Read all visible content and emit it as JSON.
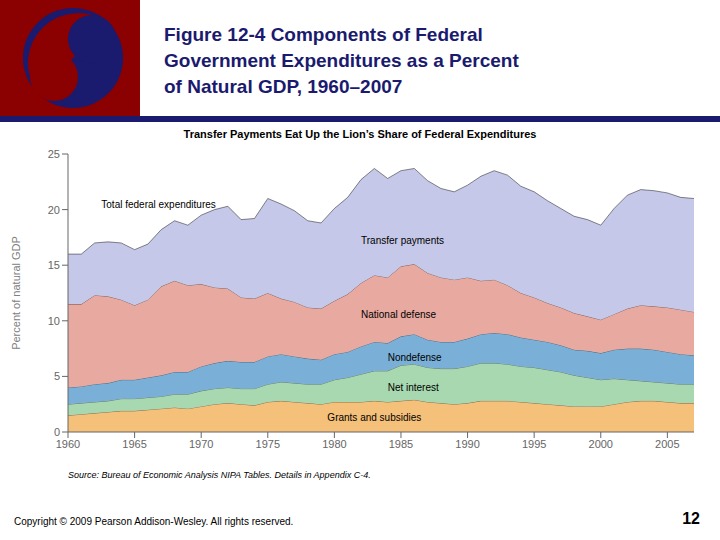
{
  "chart_data": {
    "type": "area",
    "stacked": true,
    "title": [
      "Figure 12-4  Components of Federal",
      "Government Expenditures as a Percent",
      "of Natural GDP, 1960–2007"
    ],
    "subtitle": "Transfer Payments Eat Up the Lion’s Share of Federal Expenditures",
    "y_label": "Percent of natural GDP",
    "source": "Source: Bureau of Economic Analysis NIPA Tables. Details in Appendix C-4.",
    "copyright": "Copyright © 2009 Pearson Addison-Wesley.  All rights reserved.",
    "page_number": "12",
    "xlim": [
      1960,
      2007
    ],
    "xticks": [
      1960,
      1965,
      1970,
      1975,
      1980,
      1985,
      1990,
      1995,
      2000,
      2005
    ],
    "ylim": [
      0,
      25
    ],
    "yticks": [
      0,
      5,
      10,
      15,
      20,
      25
    ],
    "grid": false,
    "annotations": [
      "Total federal expenditures"
    ],
    "x": [
      1960,
      1961,
      1962,
      1963,
      1964,
      1965,
      1966,
      1967,
      1968,
      1969,
      1970,
      1971,
      1972,
      1973,
      1974,
      1975,
      1976,
      1977,
      1978,
      1979,
      1980,
      1981,
      1982,
      1983,
      1984,
      1985,
      1986,
      1987,
      1988,
      1989,
      1990,
      1991,
      1992,
      1993,
      1994,
      1995,
      1996,
      1997,
      1998,
      1999,
      2000,
      2001,
      2002,
      2003,
      2004,
      2005,
      2006,
      2007
    ],
    "series": [
      {
        "name": "Grants and subsidies",
        "color": "#f5c07a",
        "values": [
          1.5,
          1.6,
          1.7,
          1.8,
          1.9,
          1.9,
          2.0,
          2.1,
          2.2,
          2.1,
          2.3,
          2.5,
          2.6,
          2.5,
          2.4,
          2.7,
          2.8,
          2.7,
          2.6,
          2.5,
          2.7,
          2.7,
          2.7,
          2.8,
          2.7,
          2.8,
          2.9,
          2.7,
          2.6,
          2.5,
          2.6,
          2.8,
          2.8,
          2.8,
          2.7,
          2.6,
          2.5,
          2.4,
          2.3,
          2.3,
          2.3,
          2.5,
          2.7,
          2.8,
          2.8,
          2.7,
          2.6,
          2.6
        ]
      },
      {
        "name": "Net interest",
        "color": "#a8d8b0",
        "values": [
          1.0,
          1.0,
          1.0,
          1.0,
          1.1,
          1.1,
          1.1,
          1.1,
          1.2,
          1.3,
          1.4,
          1.4,
          1.4,
          1.4,
          1.5,
          1.6,
          1.7,
          1.7,
          1.7,
          1.8,
          2.0,
          2.2,
          2.5,
          2.7,
          2.8,
          3.2,
          3.2,
          3.1,
          3.1,
          3.2,
          3.3,
          3.4,
          3.4,
          3.3,
          3.2,
          3.2,
          3.1,
          3.0,
          2.8,
          2.6,
          2.4,
          2.3,
          2.0,
          1.8,
          1.7,
          1.7,
          1.7,
          1.7
        ]
      },
      {
        "name": "Nondefense",
        "color": "#7ab0d8",
        "values": [
          1.5,
          1.5,
          1.6,
          1.6,
          1.7,
          1.7,
          1.8,
          1.9,
          2.0,
          2.0,
          2.2,
          2.3,
          2.4,
          2.4,
          2.4,
          2.5,
          2.5,
          2.4,
          2.3,
          2.2,
          2.3,
          2.3,
          2.5,
          2.6,
          2.5,
          2.6,
          2.7,
          2.5,
          2.4,
          2.4,
          2.5,
          2.6,
          2.7,
          2.7,
          2.6,
          2.5,
          2.5,
          2.4,
          2.3,
          2.4,
          2.4,
          2.6,
          2.8,
          2.9,
          2.9,
          2.8,
          2.7,
          2.6
        ]
      },
      {
        "name": "National defense",
        "color": "#e8a9a0",
        "values": [
          7.5,
          7.4,
          8.0,
          7.8,
          7.2,
          6.7,
          7.0,
          8.0,
          8.2,
          7.8,
          7.4,
          6.8,
          6.5,
          5.8,
          5.7,
          5.7,
          5.0,
          4.9,
          4.6,
          4.6,
          4.8,
          5.2,
          5.7,
          6.0,
          5.9,
          6.3,
          6.3,
          6.0,
          5.8,
          5.6,
          5.5,
          4.8,
          4.8,
          4.4,
          4.0,
          3.8,
          3.5,
          3.4,
          3.3,
          3.1,
          3.0,
          3.2,
          3.6,
          3.9,
          3.9,
          4.0,
          4.0,
          3.9
        ]
      },
      {
        "name": "Transfer payments",
        "color": "#c5c8e8",
        "values": [
          4.5,
          4.5,
          4.7,
          4.9,
          5.1,
          5.0,
          5.0,
          5.1,
          5.4,
          5.4,
          6.2,
          7.0,
          7.4,
          7.0,
          7.2,
          8.5,
          8.5,
          8.2,
          7.8,
          7.7,
          8.3,
          8.7,
          9.3,
          9.6,
          8.9,
          8.6,
          8.6,
          8.3,
          8.0,
          7.9,
          8.3,
          9.4,
          9.8,
          9.9,
          9.6,
          9.5,
          9.2,
          8.9,
          8.7,
          8.7,
          8.5,
          9.5,
          10.2,
          10.4,
          10.4,
          10.3,
          10.1,
          10.2
        ]
      }
    ]
  }
}
